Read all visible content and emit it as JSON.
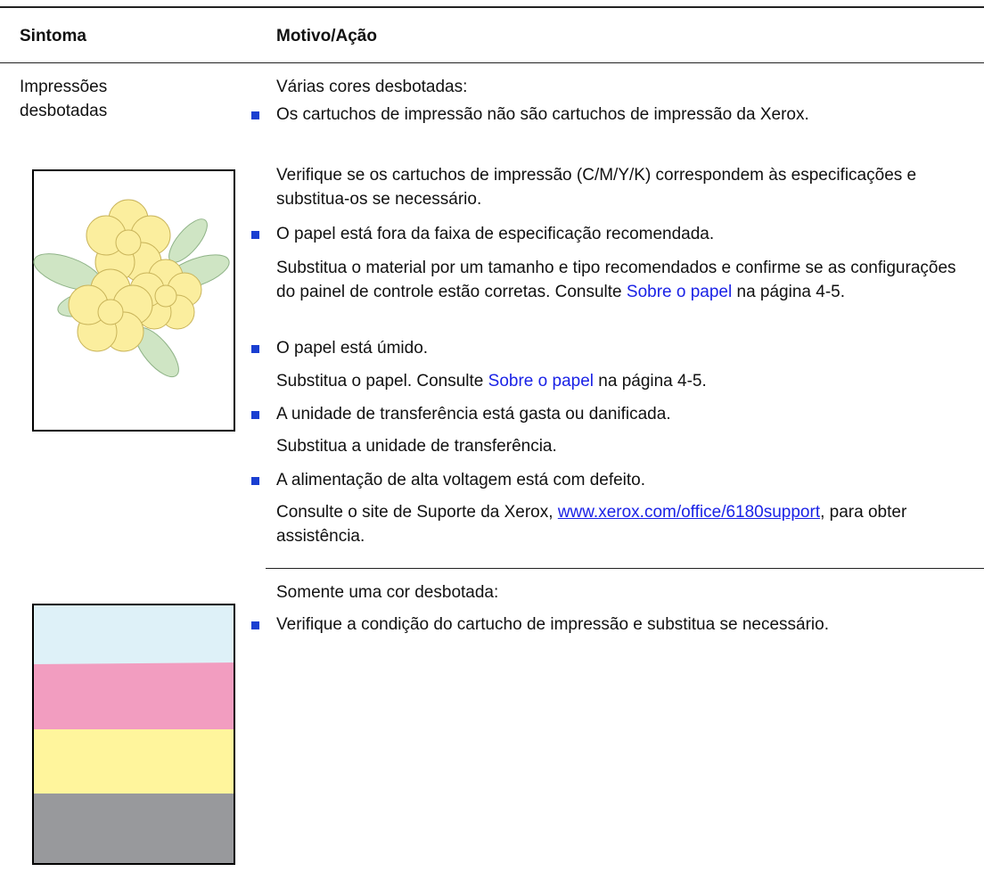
{
  "header": {
    "symptom": "Sintoma",
    "action": "Motivo/Ação"
  },
  "rows": [
    {
      "symptom": "Impressões desbotadas",
      "sections": [
        {
          "intro": "Várias cores desbotadas:",
          "items": [
            {
              "text": "Os cartuchos de impressão não são cartuchos de impressão da Xerox.",
              "action": [
                {
                  "text": "Verifique se os cartuchos de impressão (C/M/Y/K) correspondem às especificações e substitua-os se necessário.",
                  "link": false
                }
              ]
            },
            {
              "text": "O papel está fora da faixa de especificação recomendada.",
              "action": [
                {
                  "text": "Substitua o material por um tamanho e tipo recomendados e confirme se as configurações do painel de controle estão corretas. Consulte ",
                  "link": false
                },
                {
                  "text": "Sobre o papel",
                  "link": true
                },
                {
                  "text": " na página 4-5.",
                  "link": false
                }
              ]
            },
            {
              "text": "O papel está úmido.",
              "action": [
                {
                  "text": "Substitua o papel. Consulte ",
                  "link": false
                },
                {
                  "text": "Sobre o papel",
                  "link": true
                },
                {
                  "text": " na página 4-5.",
                  "link": false
                }
              ]
            },
            {
              "text": "A unidade de transferência está gasta ou danificada.",
              "action": [
                {
                  "text": "Substitua a unidade de transferência.",
                  "link": false
                }
              ]
            },
            {
              "text": "A alimentação de alta voltagem está com defeito.",
              "action": [
                {
                  "text": "Consulte o site de Suporte da Xerox, ",
                  "link": false
                },
                {
                  "text": "www.xerox.com/office/6180support",
                  "link": true,
                  "underline": true
                },
                {
                  "text": ", para obter assistência.",
                  "link": false
                }
              ]
            }
          ]
        },
        {
          "intro": "Somente uma cor desbotada:",
          "items": [
            {
              "text": "Verifique a condição do cartucho de impressão e substitua se necessário."
            }
          ]
        }
      ]
    }
  ]
}
